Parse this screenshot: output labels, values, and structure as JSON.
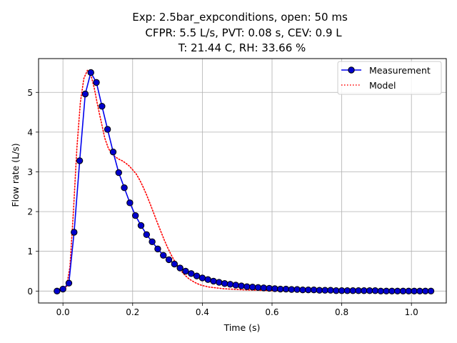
{
  "chart_data": {
    "type": "line",
    "title_lines": [
      "Exp: 2.5bar_expconditions, open: 50 ms",
      "CFPR: 5.5 L/s, PVT: 0.08 s, CEV: 0.9 L",
      "T: 21.44 C, RH: 33.66 %"
    ],
    "xlabel": "Time (s)",
    "ylabel": "Flow rate (L/s)",
    "xlim": [
      -0.07,
      1.1
    ],
    "ylim": [
      -0.3,
      5.85
    ],
    "xticks": [
      0.0,
      0.2,
      0.4,
      0.6,
      0.8,
      1.0
    ],
    "xtick_labels": [
      "0.0",
      "0.2",
      "0.4",
      "0.6",
      "0.8",
      "1.0"
    ],
    "yticks": [
      0,
      1,
      2,
      3,
      4,
      5
    ],
    "ytick_labels": [
      "0",
      "1",
      "2",
      "3",
      "4",
      "5"
    ],
    "grid": true,
    "legend_position": "top-right",
    "series": [
      {
        "name": "Measurement",
        "style": "solid line with circle markers",
        "color": "#0000ee",
        "marker_color": "#0000cc",
        "x": [
          -0.017,
          0.0,
          0.017,
          0.032,
          0.048,
          0.064,
          0.08,
          0.096,
          0.112,
          0.128,
          0.144,
          0.16,
          0.176,
          0.192,
          0.208,
          0.224,
          0.24,
          0.256,
          0.272,
          0.288,
          0.304,
          0.32,
          0.336,
          0.352,
          0.368,
          0.384,
          0.4,
          0.416,
          0.432,
          0.448,
          0.464,
          0.48,
          0.496,
          0.512,
          0.528,
          0.544,
          0.56,
          0.576,
          0.592,
          0.608,
          0.624,
          0.64,
          0.656,
          0.672,
          0.688,
          0.704,
          0.72,
          0.736,
          0.752,
          0.768,
          0.784,
          0.8,
          0.816,
          0.832,
          0.848,
          0.864,
          0.88,
          0.896,
          0.912,
          0.928,
          0.944,
          0.96,
          0.976,
          0.992,
          1.008,
          1.024,
          1.04,
          1.056
        ],
        "y": [
          0.0,
          0.05,
          0.2,
          1.48,
          3.28,
          4.96,
          5.5,
          5.25,
          4.65,
          4.07,
          3.5,
          2.98,
          2.6,
          2.22,
          1.9,
          1.65,
          1.42,
          1.24,
          1.06,
          0.9,
          0.79,
          0.68,
          0.58,
          0.5,
          0.44,
          0.38,
          0.33,
          0.29,
          0.25,
          0.22,
          0.19,
          0.17,
          0.15,
          0.13,
          0.11,
          0.1,
          0.09,
          0.08,
          0.07,
          0.06,
          0.05,
          0.05,
          0.04,
          0.04,
          0.03,
          0.03,
          0.03,
          0.02,
          0.02,
          0.02,
          0.01,
          0.01,
          0.01,
          0.01,
          0.01,
          0.01,
          0.01,
          0.01,
          0.0,
          0.0,
          0.0,
          0.0,
          0.0,
          0.0,
          0.0,
          0.0,
          0.0,
          0.0
        ]
      },
      {
        "name": "Model",
        "style": "dotted line",
        "color": "#ff0000",
        "x": [
          0.0,
          0.01,
          0.02,
          0.03,
          0.04,
          0.05,
          0.06,
          0.07,
          0.08,
          0.09,
          0.1,
          0.11,
          0.12,
          0.13,
          0.14,
          0.15,
          0.16,
          0.17,
          0.18,
          0.19,
          0.2,
          0.21,
          0.22,
          0.23,
          0.24,
          0.25,
          0.26,
          0.27,
          0.28,
          0.29,
          0.3,
          0.31,
          0.32,
          0.33,
          0.34,
          0.35,
          0.36,
          0.37,
          0.38,
          0.39,
          0.4,
          0.42,
          0.44,
          0.46,
          0.48,
          0.5,
          0.52,
          0.54,
          0.56,
          0.58,
          0.6,
          0.62,
          0.64,
          0.66,
          0.68,
          0.7,
          0.72,
          0.74
        ],
        "y": [
          0.0,
          0.1,
          0.6,
          2.0,
          3.6,
          4.75,
          5.35,
          5.55,
          5.45,
          5.1,
          4.65,
          4.25,
          3.85,
          3.6,
          3.45,
          3.38,
          3.32,
          3.28,
          3.22,
          3.15,
          3.05,
          2.95,
          2.8,
          2.62,
          2.42,
          2.2,
          1.97,
          1.74,
          1.52,
          1.3,
          1.1,
          0.92,
          0.76,
          0.62,
          0.5,
          0.4,
          0.32,
          0.26,
          0.21,
          0.17,
          0.14,
          0.1,
          0.08,
          0.06,
          0.05,
          0.04,
          0.03,
          0.025,
          0.02,
          0.015,
          0.012,
          0.01,
          0.008,
          0.006,
          0.005,
          0.004,
          0.003,
          0.002
        ]
      }
    ]
  }
}
